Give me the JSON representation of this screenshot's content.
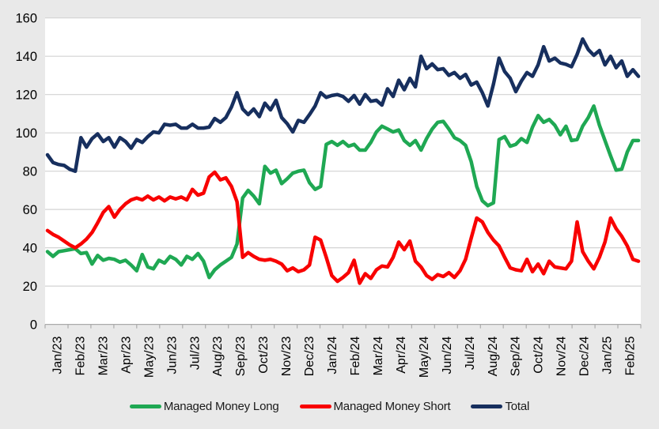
{
  "colors": {
    "background": "#e9e9e9",
    "plot_background": "#ffffff",
    "gridline": "#d3d3d3",
    "axis_line": "#ababab",
    "tick_label": "#000000",
    "legend_text": "#1a1a1a",
    "long_green": "#1fa853",
    "short_red": "#f80000",
    "total_navy": "#172f5e"
  },
  "chart_data": {
    "type": "line",
    "title": "",
    "xlabel": "",
    "ylabel": "",
    "frequency": "weekly",
    "ylim": [
      0,
      160
    ],
    "y_ticks": [
      0,
      20,
      40,
      60,
      80,
      100,
      120,
      140,
      160
    ],
    "grid": true,
    "legend_position": "bottom",
    "x_tick_labels": [
      "Jan/23",
      "Feb/23",
      "Mar/23",
      "Apr/23",
      "May/23",
      "Jun/23",
      "Jul/23",
      "Aug/23",
      "Sep/23",
      "Oct/23",
      "Nov/23",
      "Dec/23",
      "Jan/24",
      "Feb/24",
      "Mar/24",
      "Apr/24",
      "May/24",
      "Jun/24",
      "Jul/24",
      "Aug/24",
      "Sep/24",
      "Oct/24",
      "Nov/24",
      "Dec/24",
      "Jan/25",
      "Feb/25"
    ],
    "series": [
      {
        "name": "Managed Money Long",
        "color": "#1fa853",
        "values": [
          38,
          35.5,
          38,
          38.5,
          39,
          39.5,
          37,
          37.5,
          31.5,
          36,
          33.5,
          34.5,
          34,
          32.5,
          33.5,
          31,
          28,
          36.5,
          30,
          29,
          33.5,
          32,
          35.5,
          34,
          31,
          35.5,
          34,
          37,
          33,
          24.5,
          28.5,
          31,
          33,
          35,
          42,
          66,
          70,
          67,
          63,
          82.5,
          79,
          80.5,
          73.5,
          76,
          79,
          80,
          80.5,
          74,
          70.5,
          72,
          94,
          95.5,
          93.5,
          95.5,
          93,
          94,
          91,
          91,
          95,
          100.5,
          103.5,
          102,
          100.5,
          101.5,
          96,
          93.5,
          96,
          91,
          97,
          102,
          105.5,
          106,
          102,
          97.5,
          96,
          93.5,
          85,
          72,
          64.5,
          62,
          63.5,
          96.5,
          98,
          93,
          94,
          97,
          95,
          103,
          109,
          105.5,
          107,
          104,
          99,
          103.5,
          96,
          96.5,
          103.5,
          108,
          114,
          104,
          96,
          88,
          80.5,
          81,
          90,
          96,
          96
        ]
      },
      {
        "name": "Managed Money Short",
        "color": "#f80000",
        "values": [
          49,
          47,
          45.5,
          43.5,
          41.5,
          40,
          42,
          44.5,
          48,
          53,
          58.5,
          61.5,
          56,
          60,
          63,
          65,
          66,
          65,
          67,
          65,
          66.5,
          64.5,
          66.5,
          65.5,
          66.5,
          65,
          70.5,
          67.5,
          68.5,
          77,
          79.5,
          75.5,
          76.5,
          72,
          64,
          35,
          37.5,
          35.5,
          34,
          33.5,
          34,
          33,
          31.5,
          28,
          29.5,
          27.5,
          28.5,
          31,
          45.5,
          44,
          35,
          25.5,
          22.5,
          24.5,
          27,
          33.5,
          21.5,
          26.5,
          24,
          28.5,
          30.5,
          30,
          35,
          43,
          39,
          43.5,
          33,
          30,
          25.5,
          23.5,
          26,
          25,
          27,
          24.5,
          28,
          34,
          45,
          55.5,
          53.5,
          48,
          44,
          41,
          35,
          29.5,
          28.5,
          28,
          34,
          27.5,
          31.5,
          26.5,
          33,
          30,
          29.5,
          29,
          33,
          53.5,
          38,
          33,
          29,
          35,
          43,
          55.5,
          50,
          46,
          41,
          34,
          33
        ]
      },
      {
        "name": "Total",
        "color": "#172f5e",
        "values": [
          88.5,
          84.5,
          83.5,
          83,
          81,
          80,
          97.5,
          92.5,
          97,
          99.5,
          95.5,
          97.5,
          92.5,
          97.5,
          95.5,
          92,
          96.5,
          95,
          98,
          100.5,
          100,
          104.5,
          104,
          104.5,
          102.5,
          102.5,
          104.5,
          102.5,
          102.5,
          103,
          107.5,
          105.5,
          108,
          113.5,
          121,
          112.5,
          109.5,
          112.5,
          108.5,
          115.5,
          112,
          117,
          108,
          104.8,
          100.5,
          106.5,
          105.5,
          109.5,
          114,
          121,
          118.5,
          119.5,
          120,
          119,
          116.5,
          119.5,
          115,
          120,
          116.5,
          117,
          114.5,
          123,
          119,
          127.5,
          122.5,
          128.5,
          124,
          140,
          133.5,
          136,
          133,
          133.5,
          130,
          131.5,
          128.5,
          130.5,
          125,
          126.5,
          121,
          114,
          125.5,
          139,
          132,
          128.5,
          121.5,
          127,
          131.5,
          129.5,
          135.5,
          145,
          137.5,
          139,
          136.5,
          135.8,
          134.5,
          141,
          149,
          143.5,
          140.5,
          143,
          135.5,
          140,
          134,
          137.5,
          129.5,
          133,
          129.5
        ]
      }
    ]
  }
}
